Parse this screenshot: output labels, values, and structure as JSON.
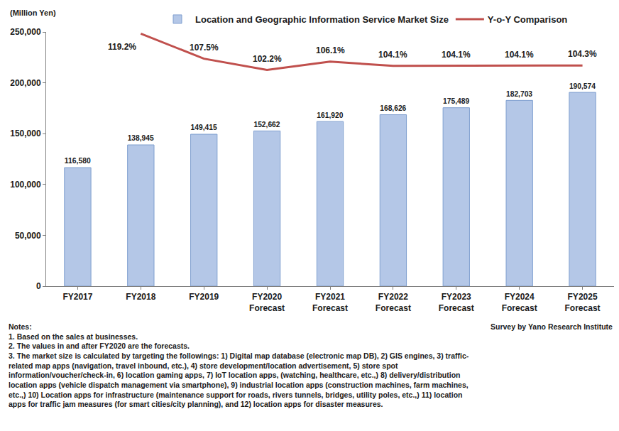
{
  "chart_data": {
    "type": "bar",
    "ylabel": "(Million Yen)",
    "categories": [
      "FY2017",
      "FY2018",
      "FY2019",
      "FY2020\nForecast",
      "FY2021\nForecast",
      "FY2022\nForecast",
      "FY2023\nForecast",
      "FY2024\nForecast",
      "FY2025\nForecast"
    ],
    "series": [
      {
        "name": "Location and Geographic Information Service Market Size",
        "type": "bar",
        "color": "#b4c7e7",
        "values": [
          116580,
          138945,
          149415,
          152662,
          161920,
          168626,
          175489,
          182703,
          190574
        ],
        "value_labels": [
          "116,580",
          "138,945",
          "149,415",
          "152,662",
          "161,920",
          "168,626",
          "175,489",
          "182,703",
          "190,574"
        ]
      },
      {
        "name": "Y-o-Y Comparison",
        "type": "line",
        "axis": "y2",
        "color": "#c0504d",
        "values": [
          null,
          119.2,
          107.5,
          102.2,
          106.1,
          104.1,
          104.1,
          104.1,
          104.3
        ],
        "value_labels": [
          null,
          "119.2%",
          "107.5%",
          "102.2%",
          "106.1%",
          "104.1%",
          "104.1%",
          "104.1%",
          "104.3%"
        ]
      }
    ],
    "ylim": [
      0,
      250000
    ],
    "yticks": [
      0,
      {
        "value": 50000,
        "label": "50,000"
      },
      {
        "value": 100000,
        "label": "100,000"
      },
      {
        "value": 150000,
        "label": "150,000"
      },
      {
        "value": 200000,
        "label": "200,000"
      },
      {
        "value": 250000,
        "label": "250,000"
      }
    ],
    "y2lim": [
      1,
      120
    ],
    "y2ticks": [],
    "grid": false,
    "legend": "top",
    "data_labels": true,
    "notes": [
      "Notes:",
      "1. Based on the sales at businesses.",
      "2. The values in and after FY2020 are the forecasts.",
      "3. The market size is calculated by targeting the followings: 1) Digital map database (electronic map DB), 2) GIS engines, 3) traffic-",
      "related map apps (navigation, travel inbound, etc.), 4) store development/location advertisement, 5) store spot",
      "information/voucher/check-in, 6) location gaming apps, 7) IoT location apps, (watching, healthcare, etc.,) 8) delivery/distribution",
      "location apps (vehicle dispatch management via smartphone), 9) industrial location apps (construction machines, farm machines,",
      "etc.,) 10) Location apps for infrastructure (maintenance support for roads, rivers tunnels, bridges, utility poles, etc.,) 11) location",
      "apps for traffic jam measures (for smart cities/city planning), and 12) location apps for disaster measures."
    ],
    "source": "Survey by Yano Research Institute"
  }
}
